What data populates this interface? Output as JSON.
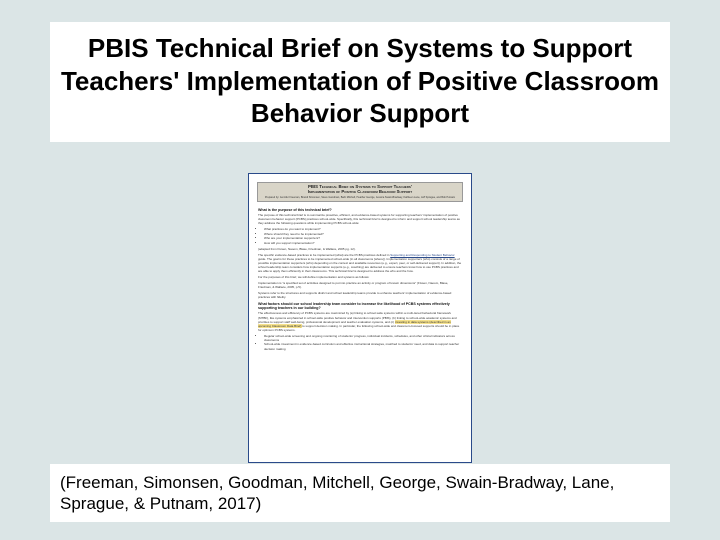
{
  "colors": {
    "slide_bg": "#dbe5e6",
    "box_bg": "#ffffff",
    "doc_border": "#2a4a8a",
    "doc_header_bg": "#d9d5c8",
    "highlight": "#f6e28c",
    "text": "#000000"
  },
  "title": "PBIS Technical Brief on Systems to Support Teachers' Implementation of Positive Classroom Behavior Support",
  "citation": "(Freeman, Simonsen, Goodman, Mitchell, George, Swain-Bradway, Lane,  Sprague, & Putnam, 2017)",
  "doc": {
    "header_line1": "PBIS Technical Brief on Systems to Support Teachers'",
    "header_line2": "Implementation of Positive Classroom Behavior Support",
    "header_byline": "Prepared by: Jennifer Freeman, Brandi Simonsen, Steve Goodman, Barb Mitchell, Heather George, Jessica Swain-Bradway, Kathleen Lane, Jeff Sprague, and Bob Putnam",
    "q1": "What is the purpose of this technical brief?",
    "p1": "The purpose of this technical brief is to summarize proactive, efficient, and evidence-based systems for supporting teachers' implementation of positive classroom behavior support (PCBS) practices school-wide. Specifically, this technical brief is designed to inform and support school leadership teams as they address the following questions while implementing PCBS school-wide:",
    "b1": "What practices do you want to implement?",
    "b2": "Where should they need to be implemented?",
    "b3": "Who are your implementation supporters?",
    "b4": "How will you support implementation?",
    "bcite": "(adapted from Fixsen, Naoom, Blase, Friedman, & Wallace, 2005 pg. 12).",
    "p2a": "The specific evidence-based practices to be implemented (what) are the PCBS practices defined in ",
    "p2link": "Supporting and Responding to Student Behavior",
    "p2b": " guide. The goal is for these practices to be implemented school-wide (in all classrooms [where]). Implementation supporters (who) consists of a range of possible implementation supporters (who) depending on the context and available resources (e.g., expert, peer, or self-delivered support). In addition, the school leadership team considers how implementation supports (e.g., coaching) are delivered to ensure teachers know how to use PCBS practices and are able to apply them efficiently in their classrooms. This technical brief is designed to address the who and the how.",
    "p3": "For the purposes of this brief, we will define implementation and systems as follows:",
    "p4": "Implementation is \"a specified set of activities designed to put into practice an activity or program of known dimensions\" (Fixsen, Naoom, Blase, Friedman, & Wallace, 2005, p.5).",
    "p5": "Systems refer to the structures and supports district and school leadership teams provide to enhance teachers' implementation of evidence-based practices with fidelity.",
    "q2": "What factors should our school leadership team consider to increase the likelihood of PCBS systems effectively supporting teachers in our building?",
    "p6a": "The effectiveness and efficiency of PCBS systems are maximized by (a) linking to school-wide systems within a multi-tiered behavioral framework (MTBF), like systems emphasized in school-wide positive behavior and intervention supports (PBIS), (b) linking to school-wide academic systems and priorities to support staff well-being, professional development and teacher evaluation systems, and (c) ",
    "p6hl": " investing in data systems (described in an upcoming Classroom Data Brief) ",
    "p6b": " to support decision making. In particular, the following school-wide and classroom-focused supports should be in place for optimum PCBS systems.",
    "sb1": "Regular school-wide screening and ongoing monitoring of students' progress, individual incidents, schedules, and other critical indicators across classrooms",
    "sb2": "School-wide investment in evidence-based curriculum and effective instructional strategies, matched to students' need, and data to support teacher decision making"
  }
}
